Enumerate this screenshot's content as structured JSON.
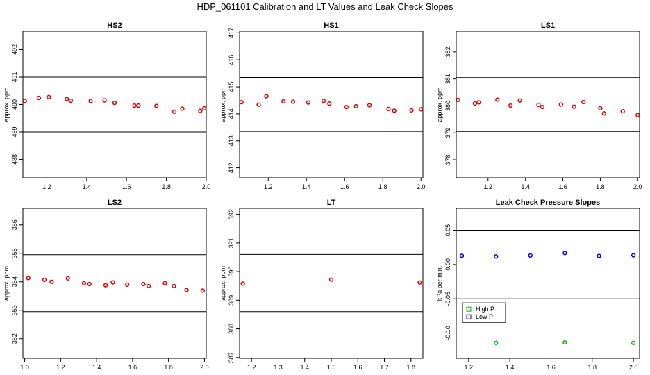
{
  "title": "HDP_061101  Calibration and LT Values and Leak Check Slopes",
  "colors": {
    "cal_points": "#dd0000",
    "high_p": "#00bb00",
    "low_p": "#0000cc",
    "lines": "#000000"
  },
  "chart_data": [
    {
      "type": "scatter",
      "title": "HS2",
      "xlabel": "",
      "ylabel": "approx. ppm",
      "xlim": [
        1.08,
        2.0
      ],
      "ylim": [
        487.33,
        492.67
      ],
      "x_ticks": [
        1.2,
        1.4,
        1.6,
        1.8,
        2.0
      ],
      "x_tick_labels": [
        "1.2",
        "1.4",
        "1.6",
        "1.8",
        "2.0"
      ],
      "y_ticks": [
        488,
        489,
        490,
        491,
        492
      ],
      "y_tick_labels": [
        "488",
        "489",
        "490",
        "491",
        "492"
      ],
      "hlines": [
        491,
        489
      ],
      "series": [
        {
          "color": "#dd0000",
          "x": [
            1.09,
            1.16,
            1.21,
            1.3,
            1.32,
            1.42,
            1.49,
            1.54,
            1.64,
            1.66,
            1.75,
            1.84,
            1.88,
            1.97,
            1.99
          ],
          "y": [
            490.13,
            490.24,
            490.27,
            490.2,
            490.14,
            490.13,
            490.15,
            490.06,
            489.96,
            489.96,
            489.95,
            489.74,
            489.85,
            489.77,
            489.86
          ]
        }
      ]
    },
    {
      "type": "scatter",
      "title": "HS1",
      "xlabel": "",
      "ylabel": "approx. ppm",
      "xlim": [
        1.05,
        2.01
      ],
      "ylim": [
        411.63,
        417.06
      ],
      "x_ticks": [
        1.2,
        1.4,
        1.6,
        1.8,
        2.0
      ],
      "x_tick_labels": [
        "1.2",
        "1.4",
        "1.6",
        "1.8",
        "2.0"
      ],
      "y_ticks": [
        412,
        413,
        414,
        415,
        416,
        417
      ],
      "y_tick_labels": [
        "412",
        "413",
        "414",
        "415",
        "416",
        "417"
      ],
      "hlines": [
        415.35,
        413.35
      ],
      "series": [
        {
          "color": "#dd0000",
          "x": [
            1.06,
            1.15,
            1.19,
            1.28,
            1.33,
            1.41,
            1.49,
            1.52,
            1.61,
            1.66,
            1.73,
            1.83,
            1.86,
            1.95,
            2.0
          ],
          "y": [
            414.43,
            414.34,
            414.65,
            414.46,
            414.45,
            414.42,
            414.48,
            414.38,
            414.25,
            414.28,
            414.32,
            414.18,
            414.12,
            414.13,
            414.17
          ]
        }
      ]
    },
    {
      "type": "scatter",
      "title": "LS1",
      "xlabel": "",
      "ylabel": "approx. ppm",
      "xlim": [
        1.03,
        2.01
      ],
      "ylim": [
        377.33,
        382.77
      ],
      "x_ticks": [
        1.2,
        1.4,
        1.6,
        1.8,
        2.0
      ],
      "x_tick_labels": [
        "1.2",
        "1.4",
        "1.6",
        "1.8",
        "2.0"
      ],
      "y_ticks": [
        378,
        379,
        380,
        381,
        382
      ],
      "y_tick_labels": [
        "378",
        "379",
        "380",
        "381",
        "382"
      ],
      "hlines": [
        381.05,
        379.05
      ],
      "series": [
        {
          "color": "#dd0000",
          "x": [
            1.04,
            1.13,
            1.15,
            1.25,
            1.32,
            1.37,
            1.47,
            1.49,
            1.59,
            1.66,
            1.71,
            1.8,
            1.82,
            1.92,
            2.0
          ],
          "y": [
            380.22,
            380.09,
            380.13,
            380.23,
            380.01,
            380.2,
            380.04,
            379.96,
            380.05,
            379.97,
            380.14,
            379.91,
            379.72,
            379.8,
            379.66
          ]
        }
      ]
    },
    {
      "type": "scatter",
      "title": "LS2",
      "xlabel": "",
      "ylabel": "approx. ppm",
      "xlim": [
        0.99,
        2.01
      ],
      "ylim": [
        351.31,
        356.58
      ],
      "x_ticks": [
        1.0,
        1.2,
        1.4,
        1.6,
        1.8,
        2.0
      ],
      "x_tick_labels": [
        "1.0",
        "1.2",
        "1.4",
        "1.6",
        "1.8",
        "2.0"
      ],
      "y_ticks": [
        352,
        353,
        354,
        355,
        356
      ],
      "y_tick_labels": [
        "352",
        "353",
        "354",
        "355",
        "356"
      ],
      "hlines": [
        354.95,
        352.95
      ],
      "series": [
        {
          "color": "#dd0000",
          "x": [
            1.02,
            1.11,
            1.15,
            1.24,
            1.33,
            1.36,
            1.45,
            1.49,
            1.57,
            1.66,
            1.69,
            1.78,
            1.83,
            1.9,
            1.99
          ],
          "y": [
            354.13,
            354.07,
            354.0,
            354.12,
            353.95,
            353.92,
            353.88,
            353.98,
            353.9,
            353.92,
            353.85,
            353.95,
            353.85,
            353.71,
            353.69
          ]
        }
      ]
    },
    {
      "type": "scatter",
      "title": "LT",
      "xlabel": "",
      "ylabel": "approx. ppm",
      "xlim": [
        1.155,
        1.845
      ],
      "ylim": [
        386.97,
        392.21
      ],
      "x_ticks": [
        1.2,
        1.3,
        1.4,
        1.5,
        1.6,
        1.7,
        1.8
      ],
      "x_tick_labels": [
        "1.2",
        "1.3",
        "1.4",
        "1.5",
        "1.6",
        "1.7",
        "1.8"
      ],
      "y_ticks": [
        387,
        388,
        389,
        390,
        391,
        392
      ],
      "y_tick_labels": [
        "387",
        "388",
        "389",
        "390",
        "391",
        "392"
      ],
      "hlines": [
        390.6,
        388.6
      ],
      "series": [
        {
          "color": "#dd0000",
          "x": [
            1.167,
            1.5,
            1.833
          ],
          "y": [
            389.58,
            389.72,
            389.62
          ]
        }
      ]
    },
    {
      "type": "scatter",
      "title": "Leak Check Pressure Slopes",
      "xlabel": "",
      "ylabel": "kPa per min.",
      "xlim": [
        1.14,
        2.03
      ],
      "ylim": [
        -0.137,
        0.082
      ],
      "x_ticks": [
        1.2,
        1.4,
        1.6,
        1.8,
        2.0
      ],
      "x_tick_labels": [
        "1.2",
        "1.4",
        "1.6",
        "1.8",
        "2.0"
      ],
      "y_ticks": [
        -0.1,
        -0.05,
        0.0,
        0.05
      ],
      "y_tick_labels": [
        "-0.10",
        "-0.05",
        "0.00",
        "0.05"
      ],
      "hlines": [
        0.05,
        -0.05
      ],
      "legend": {
        "position": "left",
        "entries": [
          "High P",
          "Low P"
        ]
      },
      "series": [
        {
          "name": "High P",
          "color": "#00bb00",
          "x": [
            1.333,
            1.667,
            2.0
          ],
          "y": [
            -0.1145,
            -0.1138,
            -0.1145
          ]
        },
        {
          "name": "Low P",
          "color": "#0000cc",
          "x": [
            1.167,
            1.333,
            1.5,
            1.667,
            1.833,
            2.0
          ],
          "y": [
            0.0128,
            0.0118,
            0.0132,
            0.0168,
            0.0125,
            0.0135
          ]
        }
      ]
    }
  ]
}
